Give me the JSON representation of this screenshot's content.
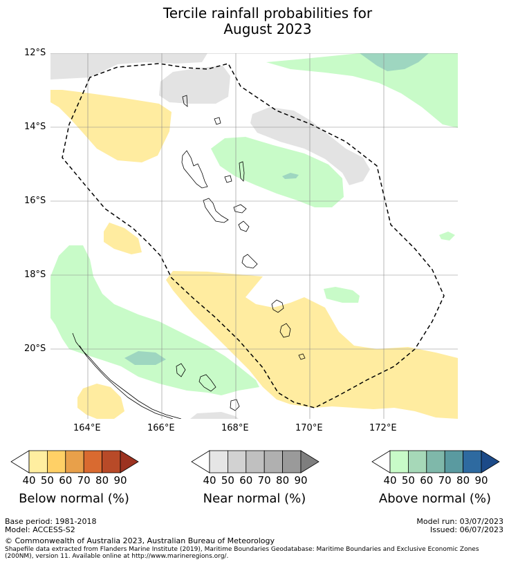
{
  "title_line1": "Tercile rainfall probabilities for",
  "title_line2": "August 2023",
  "lat_labels": [
    "12°S",
    "14°S",
    "16°S",
    "18°S",
    "20°S"
  ],
  "lon_labels": [
    "164°E",
    "166°E",
    "168°E",
    "170°E",
    "172°E"
  ],
  "colorbars": [
    {
      "label": "Below normal (%)",
      "ticks": [
        "40",
        "50",
        "60",
        "70",
        "80",
        "90"
      ],
      "colors": [
        "#ffeea0",
        "#ffd066",
        "#e8a04a",
        "#d96a30",
        "#b84a28",
        "#9c3220"
      ]
    },
    {
      "label": "Near normal (%)",
      "ticks": [
        "40",
        "50",
        "60",
        "70",
        "80",
        "90"
      ],
      "colors": [
        "#e6e6e6",
        "#d2d2d2",
        "#c0c0c0",
        "#b0b0b0",
        "#9a9a9a",
        "#7e7e7e"
      ]
    },
    {
      "label": "Above normal (%)",
      "ticks": [
        "40",
        "50",
        "60",
        "70",
        "80",
        "90"
      ],
      "colors": [
        "#c8fbc8",
        "#a6d8b8",
        "#7fb8aa",
        "#5a9aa0",
        "#2e6aa0",
        "#1c4a88"
      ]
    }
  ],
  "footer": {
    "base_period": "Base period: 1981-2018",
    "model": "Model: ACCESS-S2",
    "model_run": "Model run: 03/07/2023",
    "issued": "Issued: 06/07/2023",
    "copyright": "© Commonwealth of Australia 2023, Australian Bureau of Meteorology",
    "shapefile_line1": "Shapefile data extracted from Flanders Marine Institute (2019), Maritime Boundaries Geodatabase: Maritime Boundaries and Exclusive Economic Zones",
    "shapefile_line2": "(200NM), version 11. Available online at http://www.marineregions.org/."
  }
}
